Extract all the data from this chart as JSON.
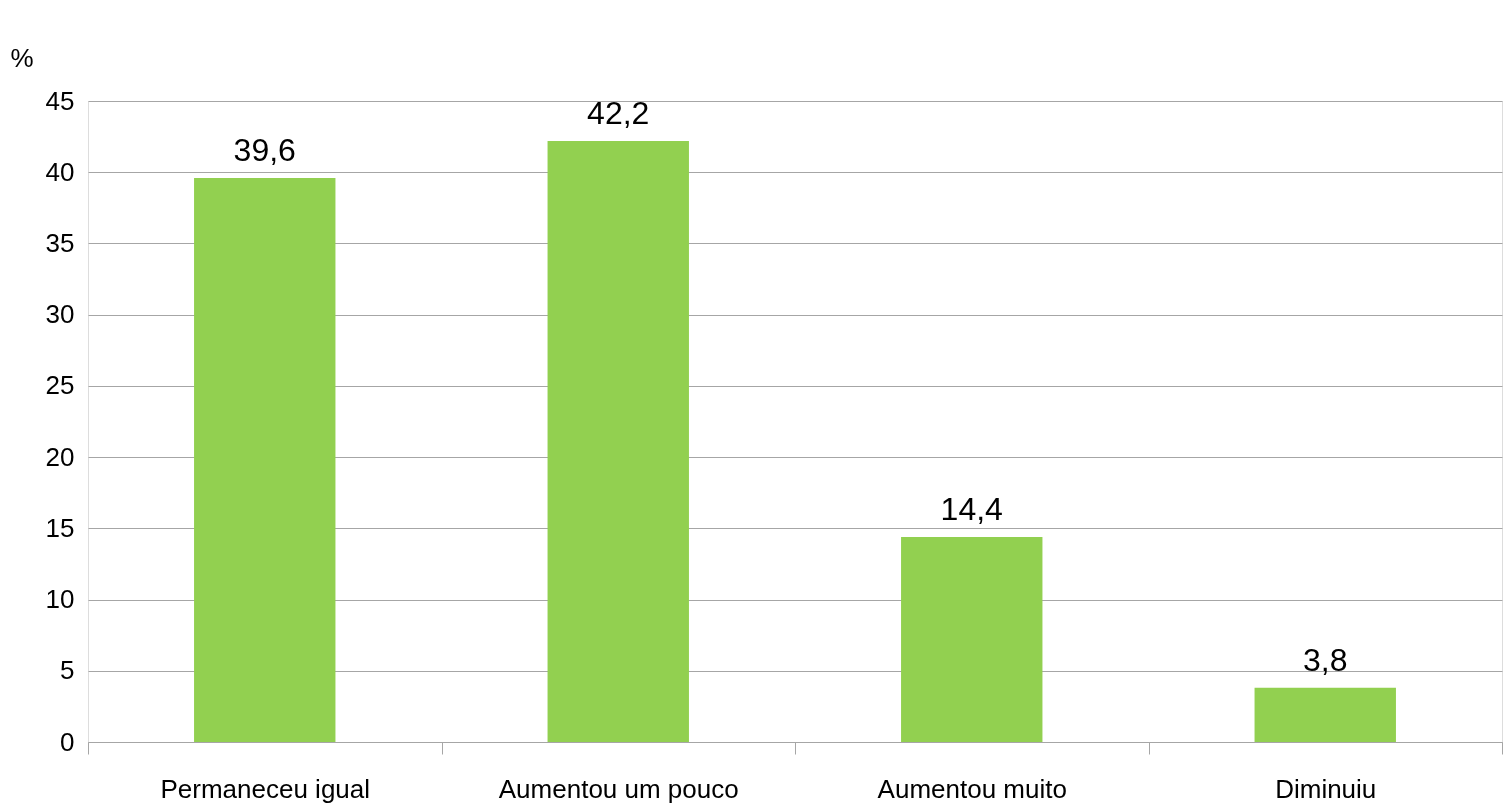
{
  "chart_data": {
    "type": "bar",
    "ylabel": "%",
    "categories": [
      "Permaneceu igual",
      "Aumentou um pouco",
      "Aumentou muito",
      "Diminuiu"
    ],
    "values": [
      39.6,
      42.2,
      14.4,
      3.8
    ],
    "value_labels": [
      "39,6",
      "42,2",
      "14,4",
      "3,8"
    ],
    "color": "#92d050",
    "ylim": [
      0,
      45
    ],
    "yticks": [
      0,
      5,
      10,
      15,
      20,
      25,
      30,
      35,
      40,
      45
    ],
    "grid": "y"
  }
}
